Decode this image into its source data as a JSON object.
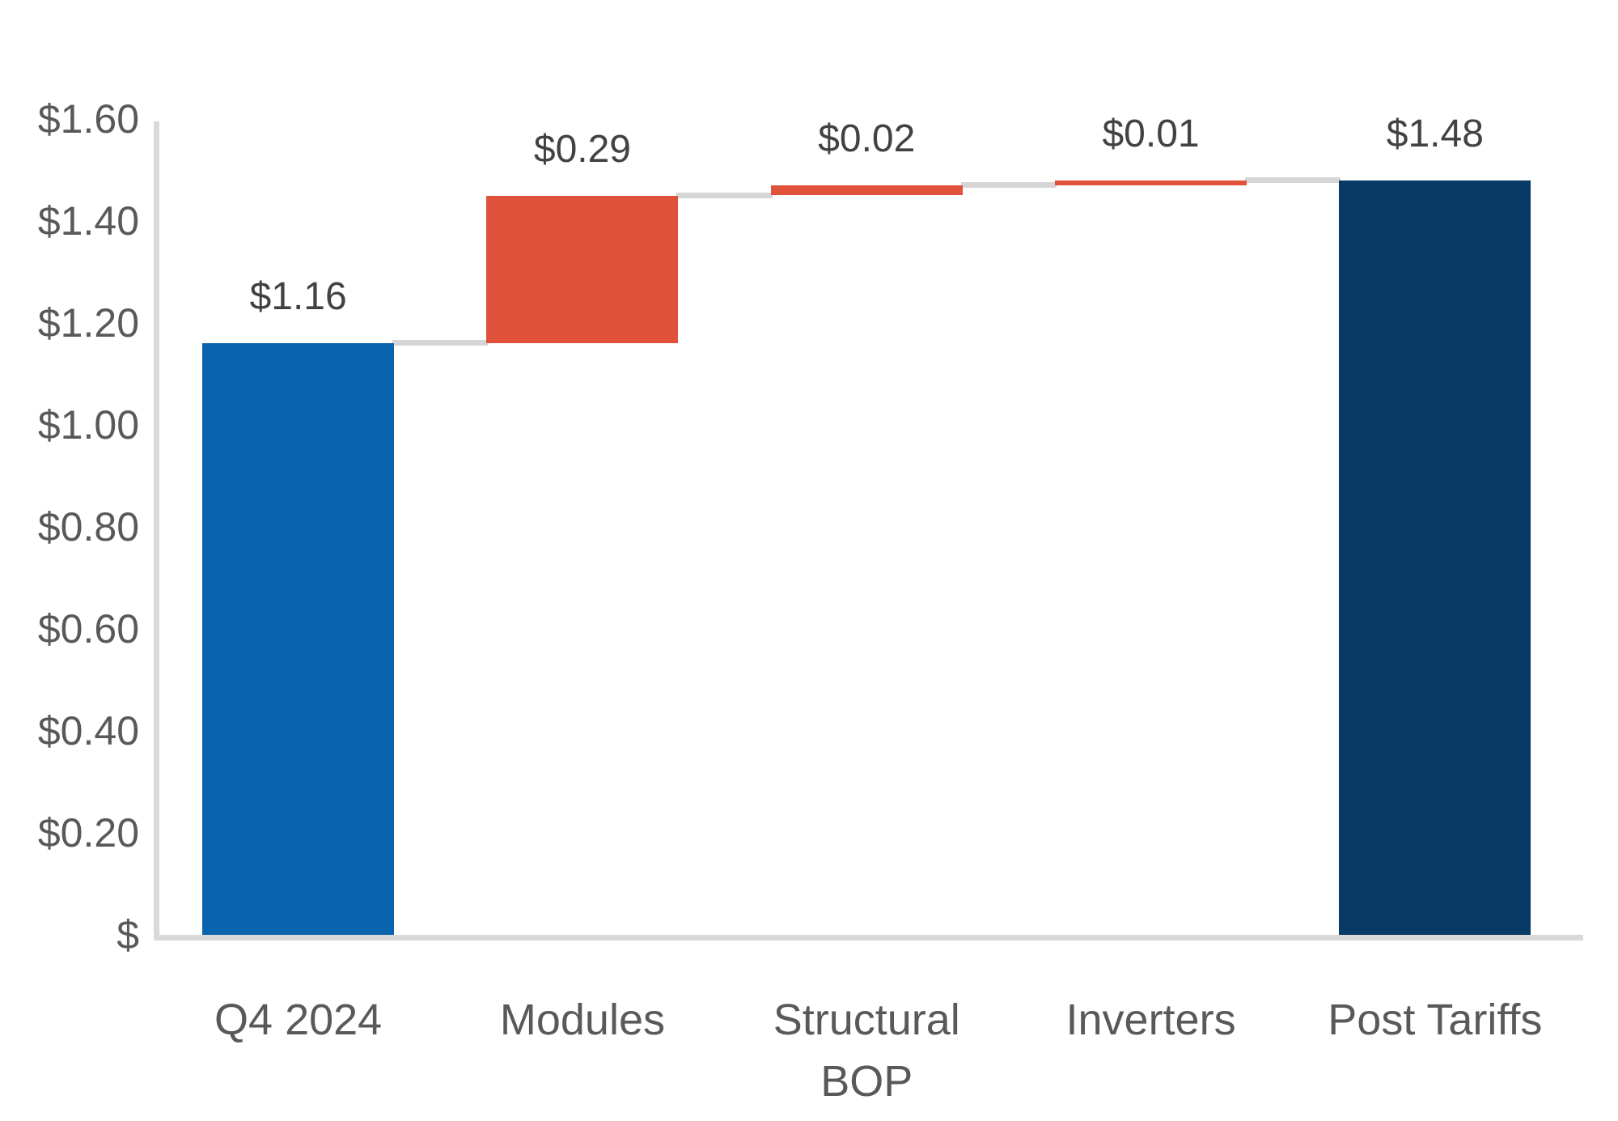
{
  "chart_data": {
    "type": "bar",
    "subtype": "waterfall",
    "title": "",
    "xlabel": "",
    "ylabel": "",
    "categories": [
      "Q4 2024",
      "Modules",
      "Structural BOP",
      "Inverters",
      "Post Tariffs"
    ],
    "values": [
      1.16,
      0.29,
      0.02,
      0.01,
      1.48
    ],
    "value_labels": [
      "$1.16",
      "$0.29",
      "$0.02",
      "$0.01",
      "$1.48"
    ],
    "roles": [
      "start",
      "increase",
      "increase",
      "increase",
      "total"
    ],
    "cumulative": [
      [
        0,
        1.16
      ],
      [
        1.16,
        1.45
      ],
      [
        1.45,
        1.47
      ],
      [
        1.47,
        1.48
      ],
      [
        0,
        1.48
      ]
    ],
    "connector_levels": [
      1.16,
      1.45,
      1.47,
      1.48
    ],
    "y_ticks": [
      "$1.60",
      "$1.40",
      "$1.20",
      "$1.00",
      "$0.80",
      "$0.60",
      "$0.40",
      "$0.20",
      "$"
    ],
    "y_tick_values": [
      1.6,
      1.4,
      1.2,
      1.0,
      0.8,
      0.6,
      0.4,
      0.2,
      0
    ],
    "ylim": [
      0,
      1.6
    ],
    "grid": false,
    "legend": false,
    "colors": {
      "start_bar": "#0a63ad",
      "increase_bar": "#e0513c",
      "total_bar": "#073a64",
      "connector": "#d6d6d6",
      "axis": "#d9d9d9",
      "tick_text": "#595959",
      "value_text": "#424242"
    }
  }
}
